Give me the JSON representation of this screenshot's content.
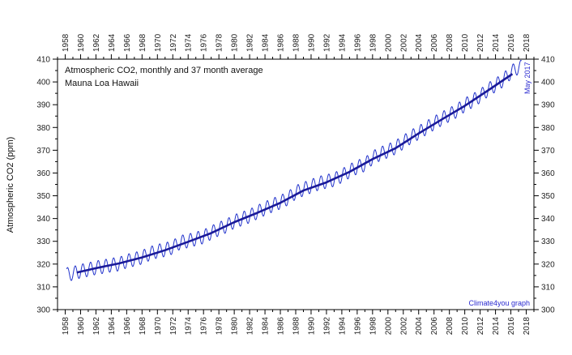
{
  "chart_data": {
    "type": "line",
    "title_line1": "Atmospheric CO2, monthly and 37 month average",
    "title_line2": "Mauna Loa Hawaii",
    "ylabel": "Atmospheric CO2 (ppm)",
    "date_annotation": "May 2017",
    "credit": "Climate4you graph",
    "xlim": [
      1957,
      2019
    ],
    "ylim": [
      300,
      410
    ],
    "x_ticks": [
      "1958",
      "1960",
      "1962",
      "1964",
      "1966",
      "1968",
      "1970",
      "1972",
      "1974",
      "1976",
      "1978",
      "1980",
      "1982",
      "1984",
      "1986",
      "1988",
      "1990",
      "1992",
      "1994",
      "1996",
      "1998",
      "2000",
      "2002",
      "2004",
      "2006",
      "2008",
      "2010",
      "2012",
      "2014",
      "2016",
      "2018"
    ],
    "y_ticks": [
      "300",
      "310",
      "320",
      "330",
      "340",
      "350",
      "360",
      "370",
      "380",
      "390",
      "400",
      "410"
    ],
    "series": [
      {
        "style": "monthly",
        "color": "#2233cc",
        "description_values": "annual mean with seasonal cycle",
        "annual_x": [
          1958,
          1959,
          1960,
          1961,
          1962,
          1963,
          1964,
          1965,
          1966,
          1967,
          1968,
          1969,
          1970,
          1971,
          1972,
          1973,
          1974,
          1975,
          1976,
          1977,
          1978,
          1979,
          1980,
          1981,
          1982,
          1983,
          1984,
          1985,
          1986,
          1987,
          1988,
          1989,
          1990,
          1991,
          1992,
          1993,
          1994,
          1995,
          1996,
          1997,
          1998,
          1999,
          2000,
          2001,
          2002,
          2003,
          2004,
          2005,
          2006,
          2007,
          2008,
          2009,
          2010,
          2011,
          2012,
          2013,
          2014,
          2015,
          2016,
          2017
        ],
        "annual_y": [
          315.3,
          315.9,
          316.9,
          317.6,
          318.4,
          318.9,
          319.6,
          320.0,
          321.3,
          322.1,
          323.0,
          324.6,
          325.7,
          326.3,
          327.4,
          329.6,
          330.2,
          331.1,
          332.0,
          333.8,
          335.4,
          336.8,
          338.7,
          339.9,
          341.1,
          342.8,
          344.4,
          345.9,
          347.2,
          348.9,
          351.5,
          352.9,
          354.2,
          355.5,
          356.3,
          357.1,
          358.8,
          360.8,
          362.6,
          363.7,
          366.7,
          368.4,
          369.7,
          371.3,
          373.5,
          375.9,
          377.7,
          379.8,
          381.9,
          383.8,
          385.6,
          387.4,
          389.9,
          391.7,
          393.8,
          396.5,
          398.6,
          400.8,
          404.2,
          406.5
        ],
        "amplitude": 3.0
      },
      {
        "style": "37 month average",
        "color": "#1a1a99",
        "x": [
          1959.5,
          1962,
          1965,
          1968,
          1971,
          1974,
          1977,
          1980,
          1983,
          1986,
          1989,
          1992,
          1995,
          1998,
          2001,
          2004,
          2007,
          2010,
          2013,
          2016.2
        ],
        "y": [
          316.3,
          318.2,
          320.3,
          322.9,
          326.1,
          329.8,
          333.6,
          338.4,
          342.5,
          346.9,
          352.3,
          355.9,
          360.5,
          366.1,
          370.9,
          377.4,
          383.5,
          389.5,
          396.2,
          403.5
        ]
      }
    ]
  }
}
